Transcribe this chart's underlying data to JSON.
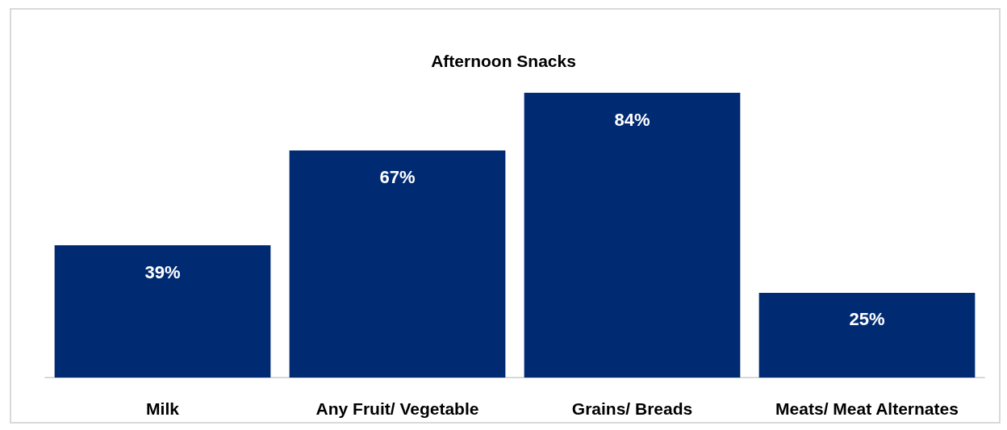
{
  "chart_data": {
    "type": "bar",
    "title": "Afternoon Snacks",
    "categories": [
      "Milk",
      "Any Fruit/ Vegetable",
      "Grains/ Breads",
      "Meats/ Meat Alternates"
    ],
    "values": [
      39,
      67,
      84,
      25
    ],
    "color": "#002b73",
    "value_labels": [
      "39%",
      "67%",
      "84%",
      "25%"
    ]
  }
}
